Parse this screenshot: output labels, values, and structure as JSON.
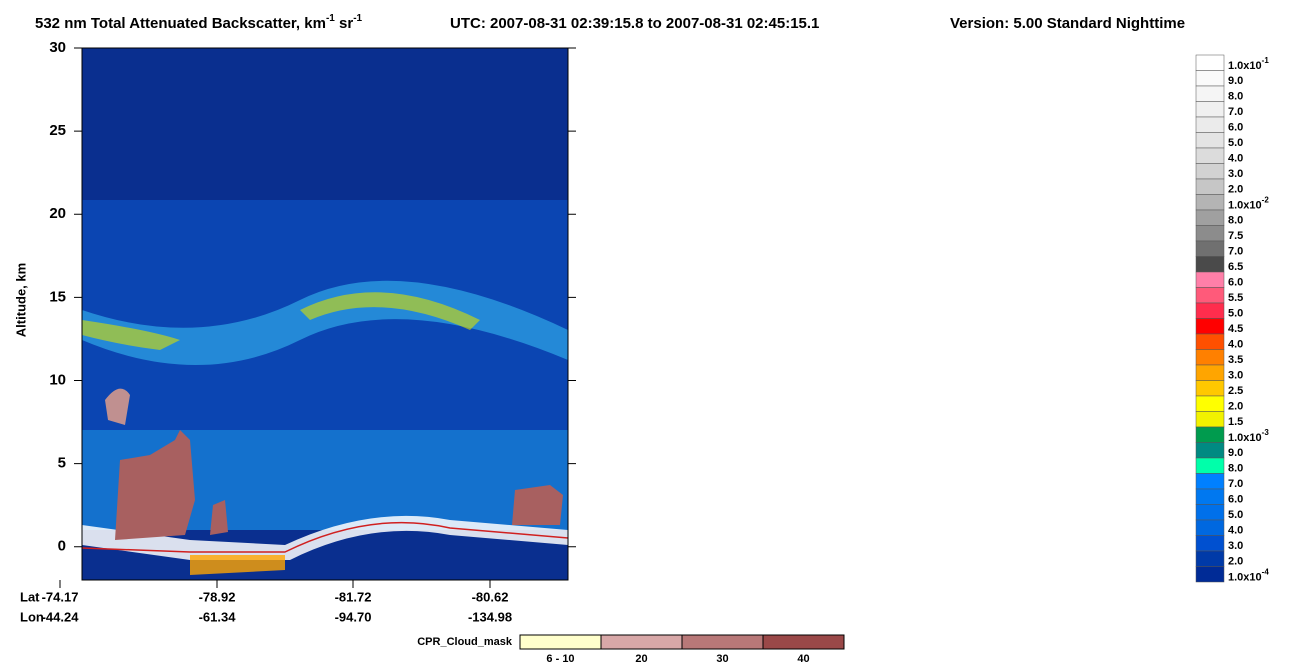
{
  "chart_data": {
    "type": "heatmap",
    "title": {
      "main": "532 nm Total Attenuated Backscatter, km",
      "sup1": "-1",
      "unit2": " sr",
      "sup2": "-1",
      "utc": "UTC:  2007-08-31 02:39:15.8  to  2007-08-31 02:45:15.1",
      "version": "Version: 5.00  Standard  Nighttime"
    },
    "ylabel": "Altitude, km",
    "ylim": [
      -2,
      30
    ],
    "yticks": [
      0,
      5,
      10,
      15,
      20,
      25,
      30
    ],
    "x_rows": [
      {
        "name": "Lat",
        "labels": [
          "-74.17",
          "-78.92",
          "-81.72",
          "-80.62"
        ]
      },
      {
        "name": "Lon",
        "labels": [
          "-44.24",
          "-61.34",
          "-94.70",
          "-134.98"
        ]
      }
    ],
    "colorbar": {
      "labels": [
        {
          "text": "1.0x10",
          "sup": "-1"
        },
        "9.0",
        "8.0",
        "7.0",
        "6.0",
        "5.0",
        "4.0",
        "3.0",
        "2.0",
        {
          "text": "1.0x10",
          "sup": "-2"
        },
        "8.0",
        "7.5",
        "7.0",
        "6.5",
        "6.0",
        "5.5",
        "5.0",
        "4.5",
        "4.0",
        "3.5",
        "3.0",
        "2.5",
        "2.0",
        "1.5",
        {
          "text": "1.0x10",
          "sup": "-3"
        },
        "9.0",
        "8.0",
        "7.0",
        "6.0",
        "5.0",
        "4.0",
        "3.0",
        "2.0",
        {
          "text": "1.0x10",
          "sup": "-4"
        }
      ],
      "colors": [
        "#ffffff",
        "#fafafa",
        "#f5f5f5",
        "#f0f0f0",
        "#ebebeb",
        "#e4e4e4",
        "#dcdcdc",
        "#d2d2d2",
        "#c6c6c6",
        "#b4b4b4",
        "#a0a0a0",
        "#8c8c8c",
        "#707070",
        "#4a4a4a",
        "#ff7fa8",
        "#ff5a7a",
        "#ff2d4d",
        "#ff0000",
        "#ff5000",
        "#ff8000",
        "#ffa500",
        "#ffc800",
        "#ffff00",
        "#f2f200",
        "#009b4e",
        "#008a82",
        "#00ffaa",
        "#0080ff",
        "#0078f0",
        "#0070ea",
        "#0068e0",
        "#0050d0",
        "#003aa8",
        "#002b96"
      ]
    },
    "cpr_legend": {
      "title": "CPR_Cloud_mask",
      "labels": [
        "6 - 10",
        "20",
        "30",
        "40"
      ],
      "colors": [
        "#ffffcc",
        "#d8a8a8",
        "#b87878",
        "#9a4848"
      ]
    }
  }
}
